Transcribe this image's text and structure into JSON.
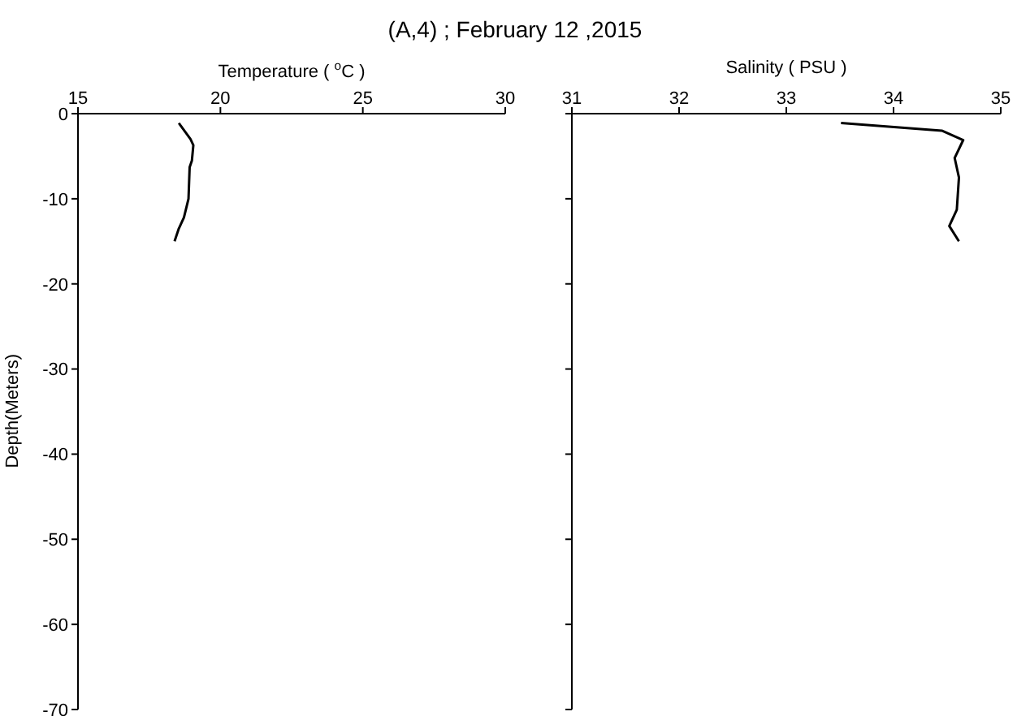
{
  "chart_data": [
    {
      "type": "line",
      "title": "(A,4) ; February 12 ,2015",
      "xlabel": "Temperature ( $^{o}$C )",
      "ylabel": "Depth(Meters)",
      "series": [
        {
          "color": "#000000",
          "x": [
            18.54,
            18.95,
            19.05,
            19.0,
            18.92,
            18.88,
            18.72,
            18.54,
            18.39
          ],
          "values": [
            -1.1,
            -3,
            -3.7,
            -5.5,
            -6.3,
            -10,
            -12.2,
            -13.5,
            -15
          ]
        }
      ],
      "xlim": [
        15,
        30
      ],
      "xticks": [
        15,
        20,
        25,
        30
      ],
      "ylim": [
        -70,
        0
      ],
      "yticks": [
        -70,
        -60,
        -50,
        -40,
        -30,
        -20,
        -10,
        0
      ],
      "grid": false,
      "legend": false,
      "marker": "none",
      "line_style": "solid"
    },
    {
      "type": "line",
      "xlabel": "Salinity ( PSU )",
      "series": [
        {
          "color": "#000000",
          "x": [
            33.51,
            34.45,
            34.65,
            34.57,
            34.61,
            34.59,
            34.52,
            34.61
          ],
          "values": [
            -1.1,
            -2,
            -3.1,
            -5.2,
            -7.5,
            -11.3,
            -13.2,
            -15
          ]
        }
      ],
      "xlim": [
        31,
        35
      ],
      "xticks": [
        31,
        32,
        33,
        34,
        35
      ],
      "ylim": [
        -70,
        0
      ],
      "yticks": [
        -70,
        -60,
        -50,
        -40,
        -30,
        -20,
        -10,
        0
      ],
      "tick_labels": "x",
      "grid": false,
      "legend": false,
      "marker": "none",
      "line_style": "solid"
    }
  ]
}
